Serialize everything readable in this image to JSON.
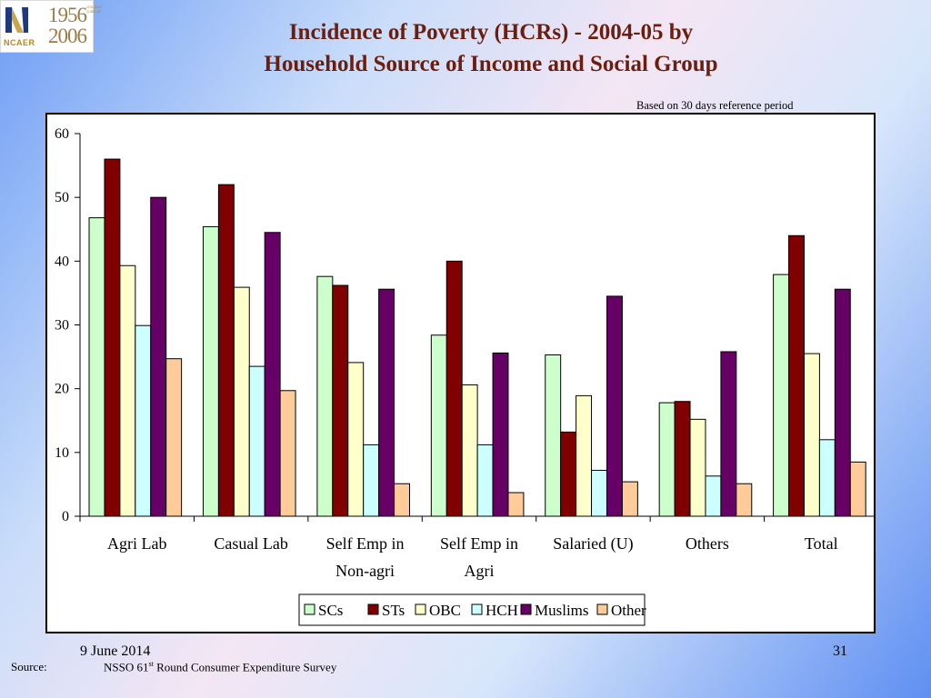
{
  "logo": {
    "org": "NCAER",
    "years_top": "1956",
    "years_bottom": "2006",
    "badge": "GOLDEN JUBILEE"
  },
  "title": {
    "line1": "Incidence of Poverty (HCRs) - 2004-05  by",
    "line2": "Household Source of Income and Social Group"
  },
  "reference_note": "Based on 30 days reference period",
  "colors": {
    "SCs": "#ccffcc",
    "STs": "#800000",
    "OBC": "#ffffcc",
    "HCH": "#ccffff",
    "Muslims": "#660066",
    "Other": "#ffcc99"
  },
  "chart_data": {
    "type": "bar",
    "categories": [
      [
        "Agri Lab"
      ],
      [
        "Casual Lab"
      ],
      [
        "Self Emp in",
        "Non-agri"
      ],
      [
        "Self Emp in",
        "Agri"
      ],
      [
        "Salaried (U)"
      ],
      [
        "Others"
      ],
      [
        "Total"
      ]
    ],
    "series": [
      {
        "name": "SCs",
        "values": [
          46.8,
          45.4,
          37.6,
          28.4,
          25.3,
          17.8,
          37.9
        ]
      },
      {
        "name": "STs",
        "values": [
          56.0,
          52.0,
          36.2,
          40.0,
          13.2,
          18.0,
          44.0
        ]
      },
      {
        "name": "OBC",
        "values": [
          39.3,
          35.9,
          24.1,
          20.6,
          18.9,
          15.2,
          25.5
        ]
      },
      {
        "name": "HCH",
        "values": [
          29.9,
          23.5,
          11.2,
          11.2,
          7.2,
          6.3,
          12.0
        ]
      },
      {
        "name": "Muslims",
        "values": [
          50.0,
          44.5,
          35.6,
          25.6,
          34.5,
          25.8,
          35.6
        ]
      },
      {
        "name": "Other",
        "values": [
          24.7,
          19.7,
          5.1,
          3.7,
          5.4,
          5.1,
          8.5
        ]
      }
    ],
    "yticks": [
      "0",
      "10",
      "20",
      "30",
      "40",
      "50",
      "60"
    ],
    "ylim": [
      0,
      60
    ],
    "legend_position": "bottom",
    "grid": false
  },
  "footer": {
    "date": "9 June 2014",
    "page": "31",
    "source_label": "Source:",
    "source_pre": "NSSO 61",
    "source_sup": "st",
    "source_post": " Round Consumer Expenditure Survey"
  }
}
